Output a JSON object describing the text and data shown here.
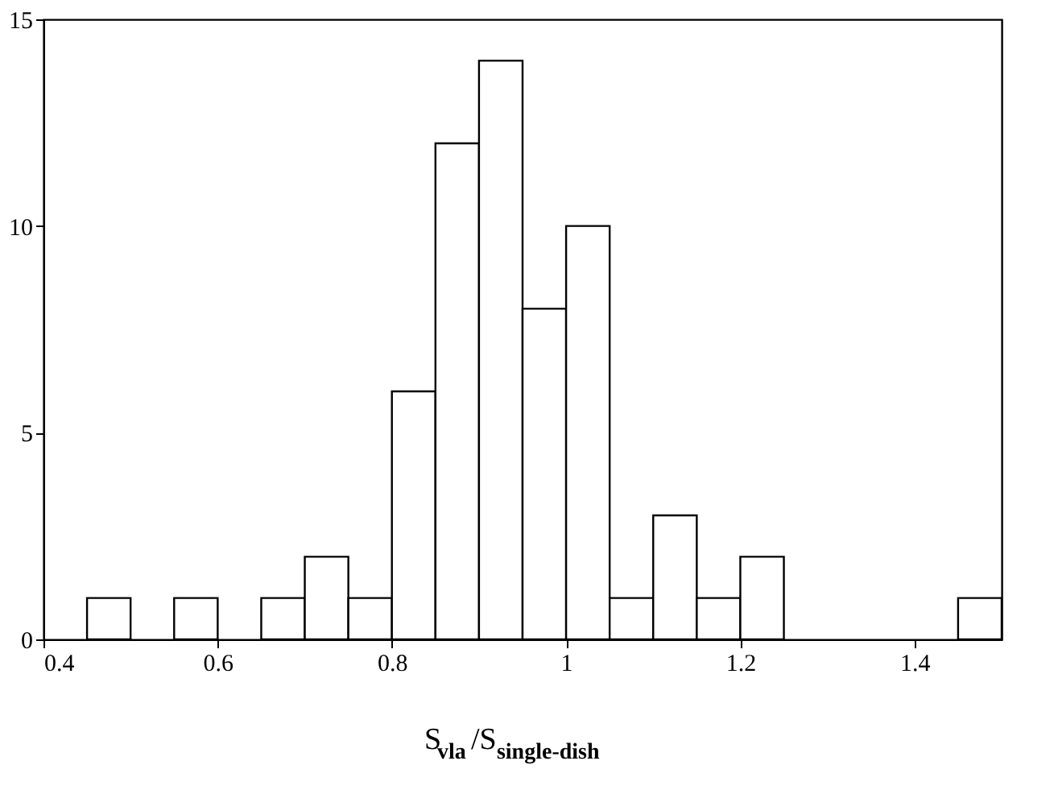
{
  "chart_data": {
    "type": "histogram",
    "xlabel": "S$_{vla}$/S$_{single-dish}$",
    "bins": [
      0.45,
      0.5,
      0.55,
      0.6,
      0.65,
      0.7,
      0.75,
      0.8,
      0.85,
      0.9,
      0.95,
      1.0,
      1.05,
      1.1,
      1.15,
      1.2,
      1.25,
      1.3,
      1.35,
      1.4,
      1.45,
      1.5
    ],
    "values": [
      1,
      0,
      1,
      0,
      1,
      2,
      1,
      6,
      12,
      14,
      8,
      10,
      1,
      3,
      1,
      2,
      0,
      0,
      0,
      0,
      1
    ],
    "color": "#ffffff",
    "xlim": [
      0.4,
      1.5
    ],
    "xticks": [
      0.4,
      0.6,
      0.8,
      1,
      1.2,
      1.4
    ],
    "ylim": [
      0,
      15
    ],
    "yticks": [
      0,
      5,
      10,
      15
    ],
    "grid": false
  }
}
